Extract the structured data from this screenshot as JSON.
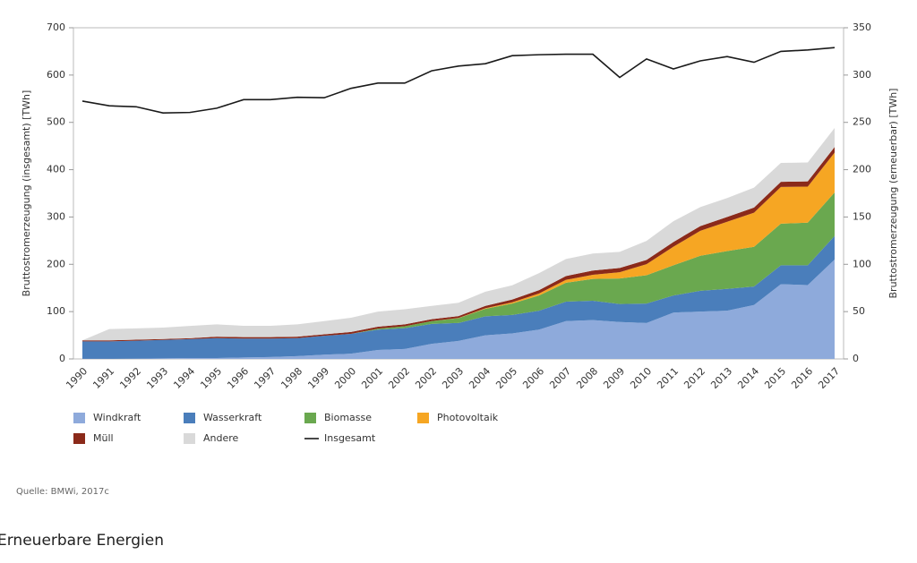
{
  "chart_data": {
    "type": "area",
    "ylabel": "Bruttostromerzeugung (insgesamt) [TWh]",
    "y2label": "Bruttostromerzeugung (erneuerbar) [TWh]",
    "categories": [
      "1990",
      "1991",
      "1992",
      "1993",
      "1994",
      "1995",
      "1996",
      "1997",
      "1998",
      "1999",
      "2000",
      "2001",
      "2002",
      "2002",
      "2003",
      "2004",
      "2005",
      "2006",
      "2007",
      "2008",
      "2009",
      "2010",
      "2011",
      "2012",
      "2013",
      "2014",
      "2015",
      "2016",
      "2017"
    ],
    "ylim": [
      0,
      700
    ],
    "yticks": [
      0,
      100,
      200,
      300,
      400,
      500,
      600,
      700
    ],
    "y2lim": [
      0,
      350
    ],
    "y2ticks": [
      0,
      50,
      100,
      150,
      200,
      250,
      300,
      350
    ],
    "series": [
      {
        "name": "Windkraft",
        "color": "#8eaadb",
        "axis": "y2",
        "values": [
          0.1,
          0.1,
          0.3,
          0.6,
          0.9,
          1,
          1.5,
          2,
          3,
          4.5,
          5.5,
          9.5,
          10.5,
          16,
          19,
          25,
          27,
          31,
          40,
          41,
          39,
          38,
          49,
          50,
          51,
          57,
          79,
          78,
          105
        ]
      },
      {
        "name": "Wasserkraft",
        "color": "#4a7ebb",
        "axis": "y2",
        "values": [
          18.5,
          18.5,
          19,
          19.5,
          20,
          21,
          20,
          19.5,
          19,
          20,
          21,
          21.5,
          22,
          21,
          19,
          20,
          19.5,
          20,
          20.5,
          20.5,
          19,
          20.5,
          18,
          22,
          23,
          19.5,
          20,
          21,
          25
        ]
      },
      {
        "name": "Biomasse",
        "color": "#6aa84f",
        "axis": "y2",
        "values": [
          0,
          0,
          0,
          0,
          0,
          0,
          0,
          0,
          0,
          0,
          0,
          1,
          2,
          3,
          5,
          8,
          12,
          16,
          20,
          23,
          27,
          30,
          32,
          37,
          40,
          42,
          44,
          45,
          46
        ]
      },
      {
        "name": "Photovoltaik",
        "color": "#f6a623",
        "axis": "y2",
        "values": [
          0,
          0,
          0,
          0,
          0,
          0,
          0,
          0,
          0,
          0,
          0,
          0,
          0,
          0,
          0.3,
          0.6,
          1.3,
          2.2,
          3.1,
          4.4,
          6.6,
          11.7,
          19.6,
          26.4,
          31,
          36,
          38.7,
          38.1,
          42
        ]
      },
      {
        "name": "Müll",
        "color": "#8b2a1a",
        "axis": "y2",
        "values": [
          1,
          1,
          1,
          1,
          1,
          1.5,
          1.5,
          1.5,
          1.5,
          1.5,
          2,
          2,
          2,
          2,
          2,
          2.5,
          3,
          3.5,
          4,
          4.5,
          4.5,
          4.5,
          5,
          5,
          5,
          5.5,
          5.5,
          5.5,
          6
        ]
      },
      {
        "name": "Andere",
        "color": "#d9d9d9",
        "axis": "y2",
        "values": [
          0,
          12,
          12,
          12,
          13,
          13,
          12,
          12,
          13,
          14,
          15,
          16,
          16,
          14,
          14,
          15,
          15,
          18,
          18,
          18,
          17,
          20,
          22,
          20,
          20,
          21,
          20,
          20,
          20
        ]
      },
      {
        "name": "Insgesamt",
        "color": "#1a1a1a",
        "axis": "y",
        "type": "line",
        "values": [
          545,
          535,
          533,
          520,
          521,
          530,
          548,
          548,
          553,
          552,
          572,
          583,
          583,
          609,
          619,
          624,
          641,
          643,
          644,
          644,
          595,
          634,
          613,
          630,
          639,
          627,
          650,
          653,
          658
        ]
      }
    ]
  },
  "source": "Quelle: BMWi, 2017c",
  "caption": "Erneuerbare Energien"
}
